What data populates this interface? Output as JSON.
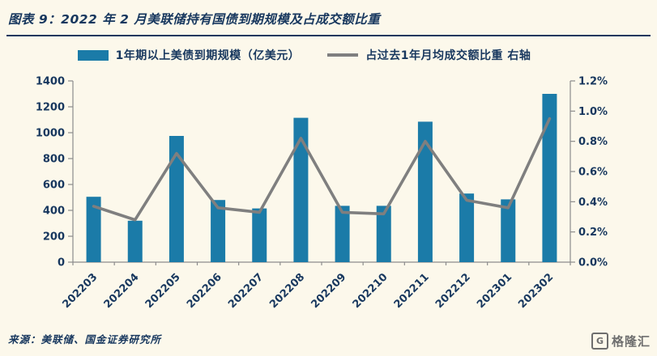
{
  "page": {
    "background": "#FCF8EB",
    "text_color": "#17375E"
  },
  "header": {
    "title": "图表 9：2022 年 2 月美联储持有国债到期规模及占成交额比重"
  },
  "legend": {
    "items": [
      {
        "label": "1年期以上美债到期规模（亿美元）",
        "marker": "bar",
        "color": "#1B7BA8"
      },
      {
        "label": "占过去1年月均成交额比重 右轴",
        "marker": "line",
        "color": "#7F7F7F"
      }
    ]
  },
  "chart_data": {
    "type": "bar",
    "subtype": "bar+line combo, dual axis",
    "title": "",
    "categories": [
      "202203",
      "202204",
      "202205",
      "202206",
      "202207",
      "202208",
      "202209",
      "202210",
      "202211",
      "202212",
      "202301",
      "202302"
    ],
    "series": [
      {
        "name": "1年期以上美债到期规模（亿美元）",
        "type": "bar",
        "axis": "left",
        "color": "#1B7BA8",
        "values": [
          505,
          320,
          975,
          480,
          415,
          1115,
          435,
          435,
          1085,
          530,
          485,
          1300
        ]
      },
      {
        "name": "占过去1年月均成交额比重 右轴",
        "type": "line",
        "axis": "right",
        "color": "#7F7F7F",
        "values": [
          0.37,
          0.28,
          0.72,
          0.36,
          0.33,
          0.82,
          0.33,
          0.32,
          0.8,
          0.41,
          0.36,
          0.95
        ]
      }
    ],
    "left_axis": {
      "min": 0,
      "max": 1400,
      "step": 200,
      "tick_labels": [
        "0",
        "200",
        "400",
        "600",
        "800",
        "1000",
        "1200",
        "1400"
      ]
    },
    "right_axis": {
      "min": 0,
      "max": 1.2,
      "step": 0.2,
      "tick_labels": [
        "0.0%",
        "0.2%",
        "0.4%",
        "0.6%",
        "0.8%",
        "1.0%",
        "1.2%"
      ]
    },
    "grid": false,
    "legend_position": "top",
    "axis_color": "#8C8C8C",
    "label_color": "#17375E"
  },
  "footer": {
    "source": "来源：美联储、国金证券研究所"
  },
  "brand": {
    "logo_text": "格隆汇",
    "logo_mark": "G"
  }
}
